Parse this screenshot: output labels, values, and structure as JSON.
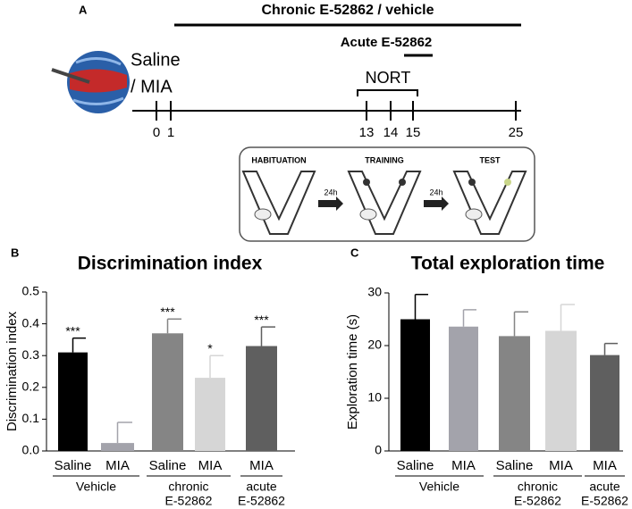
{
  "panel_a": {
    "label": "A",
    "chronic": "Chronic E-52862 / vehicle",
    "acute": "Acute E-52862",
    "nort": "NORT",
    "group_lines": [
      "Saline",
      "/ MIA"
    ],
    "days": [
      0,
      1,
      13,
      14,
      15,
      25
    ],
    "protocol": {
      "steps": [
        "HABITUATION",
        "TRAINING",
        "TEST"
      ],
      "delays": [
        "24h",
        "24h"
      ]
    }
  },
  "chart_data": [
    {
      "type": "bar",
      "panel": "B",
      "title": "Discrimination index",
      "y_label": "Discrimination index",
      "categories": [
        "Saline",
        "MIA",
        "Saline",
        "MIA",
        "MIA"
      ],
      "groups": [
        {
          "lines": [
            "Vehicle"
          ],
          "span": 2
        },
        {
          "lines": [
            "chronic",
            "E-52862"
          ],
          "span": 2
        },
        {
          "lines": [
            "acute",
            "E-52862"
          ],
          "span": 1
        }
      ],
      "values": [
        0.31,
        0.025,
        0.37,
        0.23,
        0.33
      ],
      "errors": [
        0.045,
        0.065,
        0.045,
        0.07,
        0.06
      ],
      "annotations": [
        "***",
        null,
        "***",
        "*",
        "***"
      ],
      "colors": [
        "#000000",
        "#a3a3ab",
        "#858585",
        "#d6d6d6",
        "#5f5f5f"
      ],
      "ylim": [
        0,
        0.5
      ],
      "yticks": [
        {
          "value": 0,
          "label": "0.0"
        },
        0.1,
        0.2,
        0.3,
        0.4,
        0.5
      ]
    },
    {
      "type": "bar",
      "panel": "C",
      "title": "Total exploration time",
      "y_label": "Exploration time (s)",
      "categories": [
        "Saline",
        "MIA",
        "Saline",
        "MIA",
        "MIA"
      ],
      "groups": [
        {
          "lines": [
            "Vehicle"
          ],
          "span": 2
        },
        {
          "lines": [
            "chronic",
            "E-52862"
          ],
          "span": 2
        },
        {
          "lines": [
            "acute",
            "E-52862"
          ],
          "span": 1
        }
      ],
      "values": [
        25,
        23.6,
        21.8,
        22.8,
        18.2
      ],
      "errors": [
        4.7,
        3.2,
        4.6,
        5,
        2.2
      ],
      "colors": [
        "#000000",
        "#a3a3ab",
        "#858585",
        "#d6d6d6",
        "#5f5f5f"
      ],
      "ylim": [
        0,
        30
      ],
      "yticks": [
        0,
        10,
        20,
        30
      ]
    }
  ]
}
